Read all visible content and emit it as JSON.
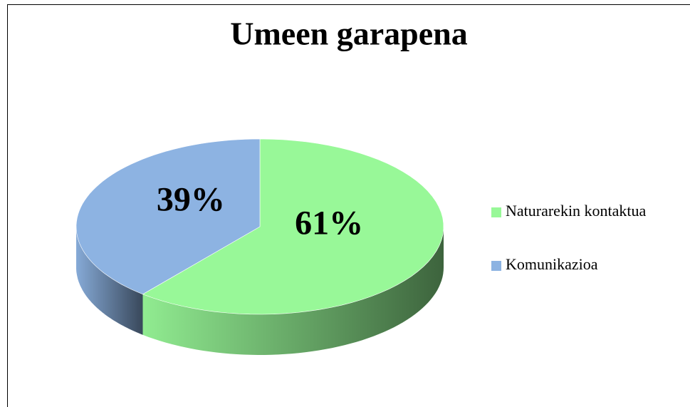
{
  "chart_data": {
    "type": "pie",
    "title": "Umeen garapena",
    "categories": [
      "Naturarekin kontaktua",
      "Komunikazioa"
    ],
    "values": [
      61,
      39
    ],
    "value_labels": [
      "61%",
      "39%"
    ],
    "colors": [
      "#98f898",
      "#8db3e2"
    ],
    "legend": "right"
  }
}
